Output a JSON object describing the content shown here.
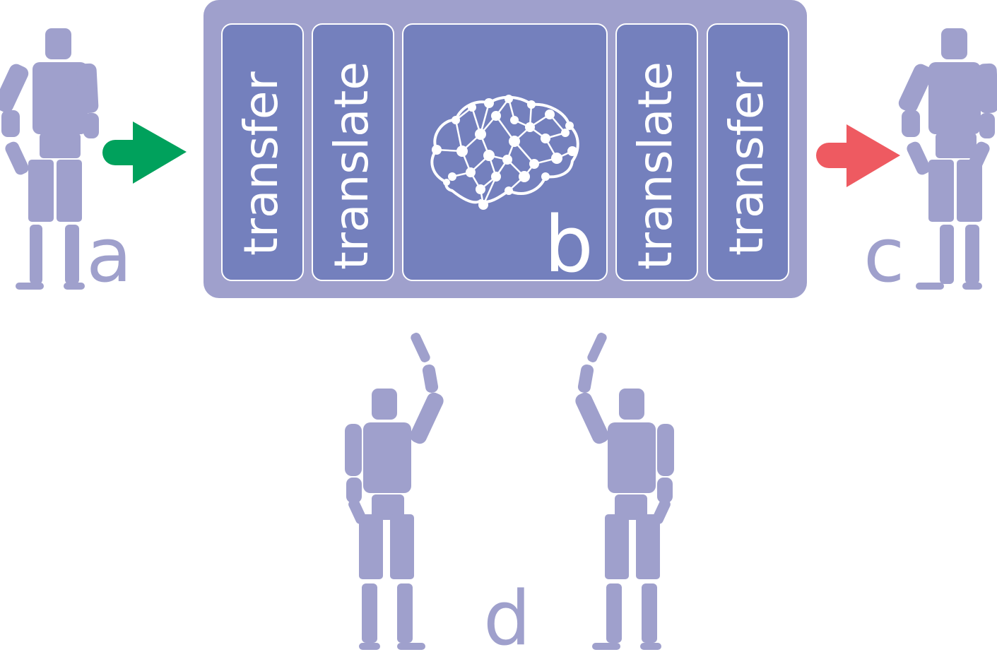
{
  "colors": {
    "figure": "#9fa0cc",
    "panel": "#9fa0cc",
    "module": "#7480bd",
    "module_border": "#ffffff",
    "arrow_in": "#00a15c",
    "arrow_out": "#ee5a61",
    "label_light": "#9fa0cc",
    "label_white": "#ffffff"
  },
  "labels": {
    "a": "a",
    "b": "b",
    "c": "c",
    "d": "d"
  },
  "modules": [
    {
      "text": "transfer"
    },
    {
      "text": "translate"
    },
    {
      "text": "",
      "icon": "brain-network-icon"
    },
    {
      "text": "translate"
    },
    {
      "text": "transfer"
    }
  ],
  "icons": {
    "figures": "human-figure-icon",
    "brain": "brain-network-icon",
    "arrows": "right-arrow-icon"
  }
}
